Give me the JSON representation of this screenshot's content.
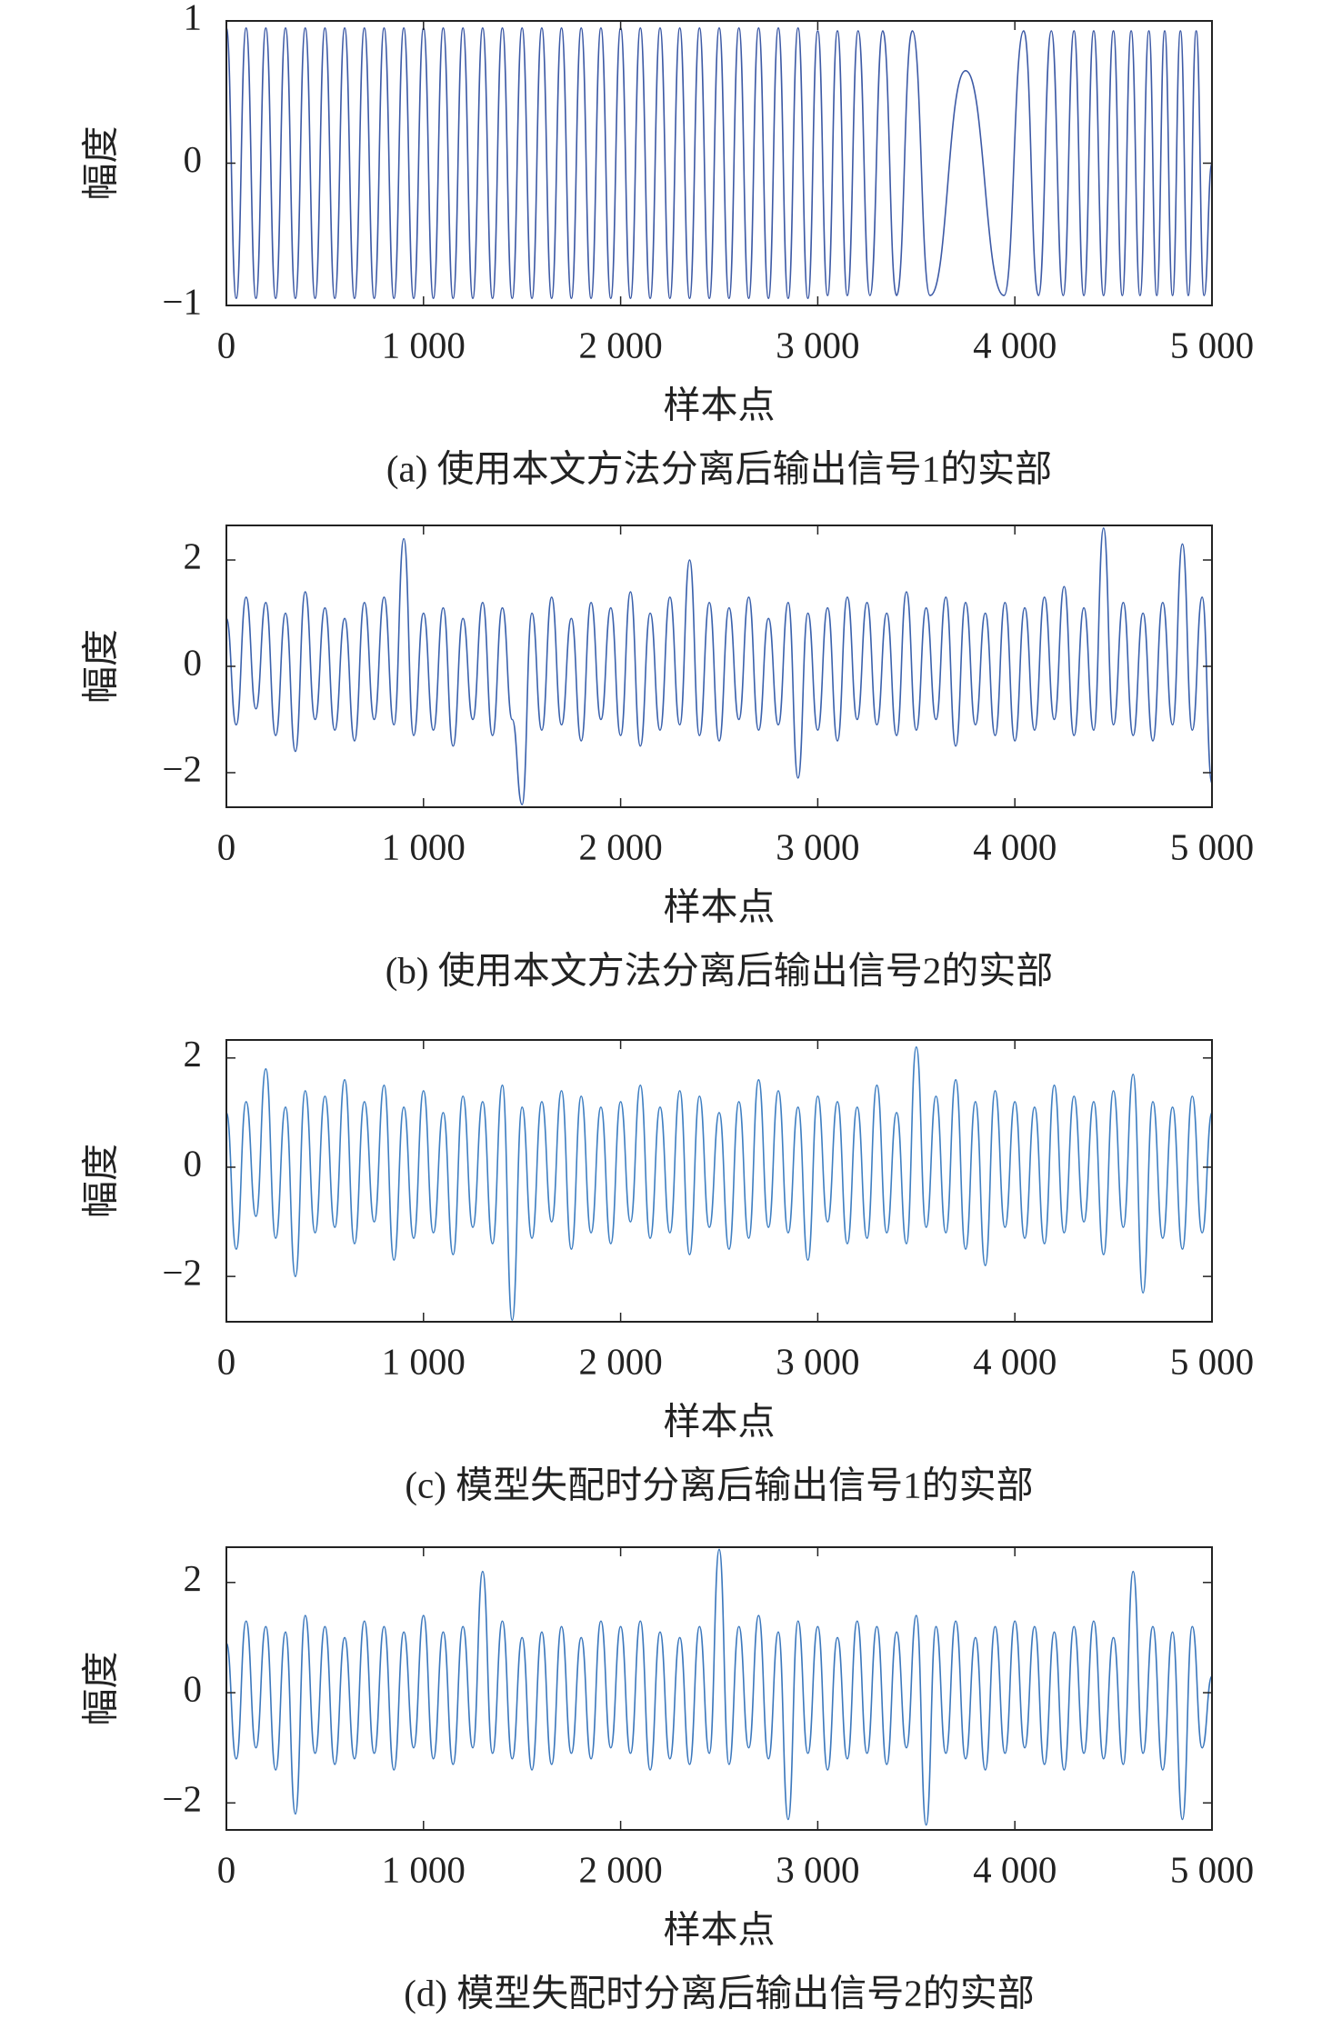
{
  "chart_data": [
    {
      "type": "line",
      "title": "(a) 使用本文方法分离后输出信号1的实部",
      "x_label": "样本点",
      "y_label": "幅度",
      "x": [
        0,
        50,
        100,
        150,
        200,
        250,
        300,
        350,
        400,
        450,
        500,
        550,
        600,
        650,
        700,
        750,
        800,
        850,
        900,
        950,
        1000,
        1050,
        1100,
        1150,
        1200,
        1250,
        1300,
        1350,
        1400,
        1450,
        1500,
        1550,
        1600,
        1650,
        1700,
        1750,
        1800,
        1850,
        1900,
        1950,
        2000,
        2050,
        2100,
        2150,
        2200,
        2250,
        2300,
        2350,
        2400,
        2450,
        2500,
        2550,
        2600,
        2650,
        2700,
        2750,
        2800,
        2850,
        2900,
        2950,
        3000,
        3050,
        3100,
        3150,
        3205,
        3265,
        3330,
        3400,
        3480,
        3570,
        3750,
        3945,
        4045,
        4120,
        4185,
        4245,
        4300,
        4350,
        4400,
        4450,
        4500,
        4545,
        4590,
        4635,
        4680,
        4720,
        4760,
        4800,
        4840,
        4880,
        4920,
        4960,
        5000
      ],
      "series": [
        {
          "color": "#3d5aa6",
          "values": [
            0.95,
            -0.95,
            0.95,
            -0.95,
            0.95,
            -0.95,
            0.95,
            -0.95,
            0.95,
            -0.95,
            0.95,
            -0.95,
            0.95,
            -0.95,
            0.95,
            -0.95,
            0.95,
            -0.95,
            0.95,
            -0.95,
            0.95,
            -0.95,
            0.95,
            -0.95,
            0.95,
            -0.95,
            0.95,
            -0.95,
            0.95,
            -0.95,
            0.95,
            -0.95,
            0.95,
            -0.95,
            0.95,
            -0.95,
            0.95,
            -0.95,
            0.95,
            -0.95,
            0.95,
            -0.95,
            0.95,
            -0.95,
            0.95,
            -0.95,
            0.95,
            -0.95,
            0.95,
            -0.95,
            0.95,
            -0.95,
            0.95,
            -0.95,
            0.95,
            -0.95,
            0.95,
            -0.95,
            0.95,
            -0.95,
            0.93,
            -0.93,
            0.93,
            -0.93,
            0.93,
            -0.93,
            0.93,
            -0.93,
            0.93,
            -0.93,
            0.65,
            -0.93,
            0.93,
            -0.93,
            0.93,
            -0.93,
            0.93,
            -0.93,
            0.93,
            -0.93,
            0.93,
            -0.93,
            0.93,
            -0.93,
            0.93,
            -0.93,
            0.93,
            -0.93,
            0.93,
            -0.93,
            0.93,
            -0.93,
            0
          ]
        }
      ],
      "xlim": [
        0,
        5000
      ],
      "ylim": [
        -1,
        1
      ],
      "xticks": [
        0,
        {
          "value": 1000,
          "label": "1 000"
        },
        {
          "value": 2000,
          "label": "2 000"
        },
        {
          "value": 3000,
          "label": "3 000"
        },
        {
          "value": 4000,
          "label": "4 000"
        },
        {
          "value": 5000,
          "label": "5 000"
        }
      ],
      "yticks": [
        {
          "value": -1,
          "label": "−1"
        },
        0,
        1
      ]
    },
    {
      "type": "line",
      "title": "(b) 使用本文方法分离后输出信号2的实部",
      "x_label": "样本点",
      "y_label": "幅度",
      "x": [
        0,
        50,
        100,
        150,
        200,
        250,
        300,
        350,
        400,
        450,
        500,
        550,
        600,
        650,
        700,
        750,
        800,
        850,
        900,
        950,
        1000,
        1050,
        1100,
        1150,
        1200,
        1250,
        1300,
        1350,
        1400,
        1450,
        1500,
        1550,
        1600,
        1650,
        1700,
        1750,
        1800,
        1850,
        1900,
        1950,
        2000,
        2050,
        2100,
        2150,
        2200,
        2250,
        2300,
        2350,
        2400,
        2450,
        2500,
        2550,
        2600,
        2650,
        2700,
        2750,
        2800,
        2850,
        2900,
        2950,
        3000,
        3050,
        3100,
        3150,
        3200,
        3250,
        3300,
        3350,
        3400,
        3450,
        3500,
        3550,
        3600,
        3650,
        3700,
        3750,
        3800,
        3850,
        3900,
        3950,
        4000,
        4050,
        4100,
        4150,
        4200,
        4250,
        4300,
        4350,
        4400,
        4450,
        4500,
        4550,
        4600,
        4650,
        4700,
        4750,
        4800,
        4850,
        4900,
        4950,
        5000
      ],
      "series": [
        {
          "color": "#3b62ad",
          "values": [
            0.9,
            -1.1,
            1.3,
            -0.8,
            1.2,
            -1.3,
            1.0,
            -1.6,
            1.4,
            -1.0,
            1.1,
            -1.2,
            0.9,
            -1.4,
            1.2,
            -1.0,
            1.3,
            -1.1,
            2.4,
            -1.3,
            1.0,
            -1.2,
            1.1,
            -1.5,
            0.9,
            -1.0,
            1.2,
            -1.3,
            1.1,
            -1.0,
            -2.6,
            1.0,
            -1.2,
            1.3,
            -1.1,
            0.9,
            -1.4,
            1.2,
            -1.0,
            1.1,
            -1.3,
            1.4,
            -1.5,
            1.0,
            -1.2,
            1.3,
            -1.1,
            2.0,
            -1.3,
            1.2,
            -1.4,
            1.1,
            -1.0,
            1.3,
            -1.2,
            0.9,
            -1.1,
            1.2,
            -2.1,
            1.0,
            -1.2,
            1.1,
            -1.4,
            1.3,
            -1.0,
            1.2,
            -1.1,
            1.0,
            -1.3,
            1.4,
            -1.2,
            1.1,
            -1.0,
            1.3,
            -1.5,
            1.2,
            -1.1,
            1.0,
            -1.3,
            1.2,
            -1.4,
            1.1,
            -1.2,
            1.3,
            -1.0,
            1.5,
            -1.3,
            1.1,
            -1.2,
            2.6,
            -1.1,
            1.2,
            -1.3,
            1.0,
            -1.4,
            1.2,
            -1.1,
            2.3,
            -1.2,
            1.3,
            -2.2
          ]
        }
      ],
      "xlim": [
        0,
        5000
      ],
      "ylim": [
        -2.65,
        2.65
      ],
      "xticks": [
        0,
        {
          "value": 1000,
          "label": "1 000"
        },
        {
          "value": 2000,
          "label": "2 000"
        },
        {
          "value": 3000,
          "label": "3 000"
        },
        {
          "value": 4000,
          "label": "4 000"
        },
        {
          "value": 5000,
          "label": "5 000"
        }
      ],
      "yticks": [
        {
          "value": -2,
          "label": "−2"
        },
        0,
        2
      ]
    },
    {
      "type": "line",
      "title": "(c) 模型失配时分离后输出信号1的实部",
      "x_label": "样本点",
      "y_label": "幅度",
      "x": [
        0,
        50,
        100,
        150,
        200,
        250,
        300,
        350,
        400,
        450,
        500,
        550,
        600,
        650,
        700,
        750,
        800,
        850,
        900,
        950,
        1000,
        1050,
        1100,
        1150,
        1200,
        1250,
        1300,
        1350,
        1400,
        1450,
        1500,
        1550,
        1600,
        1650,
        1700,
        1750,
        1800,
        1850,
        1900,
        1950,
        2000,
        2050,
        2100,
        2150,
        2200,
        2250,
        2300,
        2350,
        2400,
        2450,
        2500,
        2550,
        2600,
        2650,
        2700,
        2750,
        2800,
        2850,
        2900,
        2950,
        3000,
        3050,
        3100,
        3150,
        3200,
        3250,
        3300,
        3350,
        3400,
        3450,
        3500,
        3550,
        3600,
        3650,
        3700,
        3750,
        3800,
        3850,
        3900,
        3950,
        4000,
        4050,
        4100,
        4150,
        4200,
        4250,
        4300,
        4350,
        4400,
        4450,
        4500,
        4550,
        4600,
        4650,
        4700,
        4750,
        4800,
        4850,
        4900,
        4950,
        5000
      ],
      "series": [
        {
          "color": "#3f7fc2",
          "values": [
            1.0,
            -1.5,
            1.2,
            -0.9,
            1.8,
            -1.3,
            1.1,
            -2.0,
            1.4,
            -1.2,
            1.3,
            -1.1,
            1.6,
            -1.4,
            1.2,
            -1.0,
            1.5,
            -1.7,
            1.1,
            -1.3,
            1.4,
            -1.2,
            1.0,
            -1.6,
            1.3,
            -1.1,
            1.2,
            -1.4,
            1.5,
            -2.8,
            1.1,
            -1.3,
            1.2,
            -1.0,
            1.4,
            -1.5,
            1.3,
            -1.2,
            1.1,
            -1.4,
            1.2,
            -1.0,
            1.5,
            -1.3,
            1.1,
            -1.2,
            1.4,
            -1.6,
            1.3,
            -1.1,
            1.0,
            -1.5,
            1.2,
            -1.3,
            1.6,
            -1.1,
            1.4,
            -1.2,
            1.1,
            -1.7,
            1.3,
            -1.0,
            1.2,
            -1.4,
            1.1,
            -1.3,
            1.5,
            -1.2,
            1.0,
            -1.4,
            2.2,
            -1.1,
            1.3,
            -1.2,
            1.6,
            -1.5,
            1.2,
            -1.8,
            1.4,
            -1.1,
            1.2,
            -1.3,
            1.1,
            -1.4,
            1.5,
            -1.2,
            1.3,
            -1.0,
            1.2,
            -1.6,
            1.4,
            -1.1,
            1.7,
            -2.3,
            1.2,
            -1.3,
            1.1,
            -1.5,
            1.3,
            -1.2,
            1.0
          ]
        }
      ],
      "xlim": [
        0,
        5000
      ],
      "ylim": [
        -2.83,
        2.33
      ],
      "xticks": [
        0,
        {
          "value": 1000,
          "label": "1 000"
        },
        {
          "value": 2000,
          "label": "2 000"
        },
        {
          "value": 3000,
          "label": "3 000"
        },
        {
          "value": 4000,
          "label": "4 000"
        },
        {
          "value": 5000,
          "label": "5 000"
        }
      ],
      "yticks": [
        {
          "value": -2,
          "label": "−2"
        },
        0,
        2
      ]
    },
    {
      "type": "line",
      "title": "(d) 模型失配时分离后输出信号2的实部",
      "x_label": "样本点",
      "y_label": "幅度",
      "x": [
        0,
        50,
        100,
        150,
        200,
        250,
        300,
        350,
        400,
        450,
        500,
        550,
        600,
        650,
        700,
        750,
        800,
        850,
        900,
        950,
        1000,
        1050,
        1100,
        1150,
        1200,
        1250,
        1300,
        1350,
        1400,
        1450,
        1500,
        1550,
        1600,
        1650,
        1700,
        1750,
        1800,
        1850,
        1900,
        1950,
        2000,
        2050,
        2100,
        2150,
        2200,
        2250,
        2300,
        2350,
        2400,
        2450,
        2500,
        2550,
        2600,
        2650,
        2700,
        2750,
        2800,
        2850,
        2900,
        2950,
        3000,
        3050,
        3100,
        3150,
        3200,
        3250,
        3300,
        3350,
        3400,
        3450,
        3500,
        3550,
        3600,
        3650,
        3700,
        3750,
        3800,
        3850,
        3900,
        3950,
        4000,
        4050,
        4100,
        4150,
        4200,
        4250,
        4300,
        4350,
        4400,
        4450,
        4500,
        4550,
        4600,
        4650,
        4700,
        4750,
        4800,
        4850,
        4900,
        4950,
        5000
      ],
      "series": [
        {
          "color": "#3c78bd",
          "values": [
            0.9,
            -1.2,
            1.3,
            -1.0,
            1.2,
            -1.4,
            1.1,
            -2.2,
            1.4,
            -1.1,
            1.2,
            -1.3,
            1.0,
            -1.2,
            1.3,
            -1.1,
            1.2,
            -1.4,
            1.1,
            -1.0,
            1.4,
            -1.2,
            1.1,
            -1.3,
            1.2,
            -1.0,
            2.2,
            -1.1,
            1.3,
            -1.2,
            1.0,
            -1.4,
            1.1,
            -1.3,
            1.2,
            -1.1,
            1.0,
            -1.2,
            1.3,
            -1.0,
            1.2,
            -1.1,
            1.3,
            -1.4,
            1.1,
            -1.2,
            1.0,
            -1.3,
            1.2,
            -1.1,
            2.6,
            -1.3,
            1.2,
            -1.0,
            1.4,
            -1.2,
            1.1,
            -2.3,
            1.3,
            -1.1,
            1.2,
            -1.4,
            1.0,
            -1.2,
            1.3,
            -1.1,
            1.2,
            -1.3,
            1.1,
            -1.0,
            1.4,
            -2.4,
            1.2,
            -1.1,
            1.3,
            -1.2,
            1.0,
            -1.4,
            1.2,
            -1.1,
            1.3,
            -1.0,
            1.2,
            -1.3,
            1.1,
            -1.4,
            1.2,
            -1.1,
            1.3,
            -1.2,
            1.0,
            -1.3,
            2.2,
            -1.1,
            1.2,
            -1.4,
            1.1,
            -2.3,
            1.2,
            -1.0,
            0.3
          ]
        }
      ],
      "xlim": [
        0,
        5000
      ],
      "ylim": [
        -2.49,
        2.64
      ],
      "xticks": [
        0,
        {
          "value": 1000,
          "label": "1 000"
        },
        {
          "value": 2000,
          "label": "2 000"
        },
        {
          "value": 3000,
          "label": "3 000"
        },
        {
          "value": 4000,
          "label": "4 000"
        },
        {
          "value": 5000,
          "label": "5 000"
        }
      ],
      "yticks": [
        {
          "value": -2,
          "label": "−2"
        },
        0,
        2
      ]
    }
  ]
}
